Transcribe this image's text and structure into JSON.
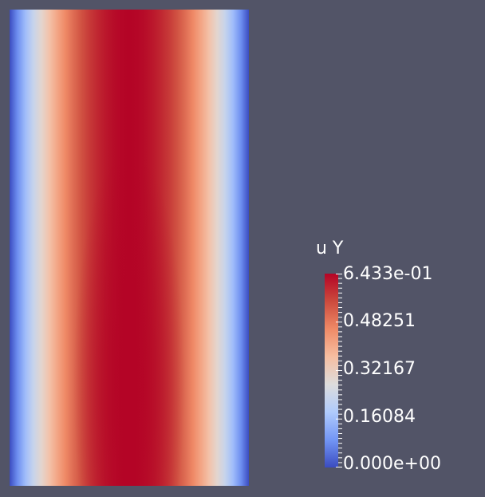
{
  "field": {
    "name": "u Y",
    "min_value": 0.0,
    "max_value": 0.6433,
    "profile": "parabolic-across-width",
    "colormap": "cool-to-warm",
    "colormap_stops": [
      "#3b4cc0",
      "#7396f5",
      "#b0cbfc",
      "#dddcdc",
      "#f6bea1",
      "#ef8a66",
      "#cc4a3d",
      "#b40426"
    ]
  },
  "colorbar": {
    "title": "u Y",
    "labels": [
      "6.433e-01",
      "0.48251",
      "0.32167",
      "0.16084",
      "0.000e+00"
    ]
  },
  "colors": {
    "background": "#525467",
    "text": "#ffffff",
    "tick": "#ffffff"
  }
}
